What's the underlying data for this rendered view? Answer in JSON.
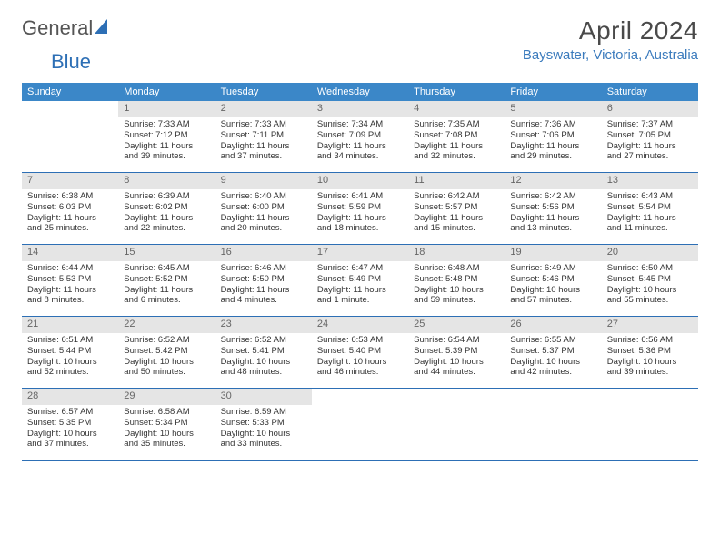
{
  "logo": {
    "text1": "General",
    "text2": "Blue"
  },
  "title": {
    "month": "April 2024",
    "location": "Bayswater, Victoria, Australia"
  },
  "colors": {
    "header_bg": "#3b87c8",
    "header_text": "#ffffff",
    "week_border": "#2d6fb5",
    "daynum_bg": "#e5e5e5",
    "daynum_text": "#666666",
    "body_text": "#333333",
    "location_text": "#3b7bbd",
    "month_text": "#4a4a4a",
    "logo_blue": "#2d6fb5"
  },
  "daysOfWeek": [
    "Sunday",
    "Monday",
    "Tuesday",
    "Wednesday",
    "Thursday",
    "Friday",
    "Saturday"
  ],
  "weeks": [
    [
      {
        "n": "",
        "sr": "",
        "ss": "",
        "dl": ""
      },
      {
        "n": "1",
        "sr": "Sunrise: 7:33 AM",
        "ss": "Sunset: 7:12 PM",
        "dl": "Daylight: 11 hours and 39 minutes."
      },
      {
        "n": "2",
        "sr": "Sunrise: 7:33 AM",
        "ss": "Sunset: 7:11 PM",
        "dl": "Daylight: 11 hours and 37 minutes."
      },
      {
        "n": "3",
        "sr": "Sunrise: 7:34 AM",
        "ss": "Sunset: 7:09 PM",
        "dl": "Daylight: 11 hours and 34 minutes."
      },
      {
        "n": "4",
        "sr": "Sunrise: 7:35 AM",
        "ss": "Sunset: 7:08 PM",
        "dl": "Daylight: 11 hours and 32 minutes."
      },
      {
        "n": "5",
        "sr": "Sunrise: 7:36 AM",
        "ss": "Sunset: 7:06 PM",
        "dl": "Daylight: 11 hours and 29 minutes."
      },
      {
        "n": "6",
        "sr": "Sunrise: 7:37 AM",
        "ss": "Sunset: 7:05 PM",
        "dl": "Daylight: 11 hours and 27 minutes."
      }
    ],
    [
      {
        "n": "7",
        "sr": "Sunrise: 6:38 AM",
        "ss": "Sunset: 6:03 PM",
        "dl": "Daylight: 11 hours and 25 minutes."
      },
      {
        "n": "8",
        "sr": "Sunrise: 6:39 AM",
        "ss": "Sunset: 6:02 PM",
        "dl": "Daylight: 11 hours and 22 minutes."
      },
      {
        "n": "9",
        "sr": "Sunrise: 6:40 AM",
        "ss": "Sunset: 6:00 PM",
        "dl": "Daylight: 11 hours and 20 minutes."
      },
      {
        "n": "10",
        "sr": "Sunrise: 6:41 AM",
        "ss": "Sunset: 5:59 PM",
        "dl": "Daylight: 11 hours and 18 minutes."
      },
      {
        "n": "11",
        "sr": "Sunrise: 6:42 AM",
        "ss": "Sunset: 5:57 PM",
        "dl": "Daylight: 11 hours and 15 minutes."
      },
      {
        "n": "12",
        "sr": "Sunrise: 6:42 AM",
        "ss": "Sunset: 5:56 PM",
        "dl": "Daylight: 11 hours and 13 minutes."
      },
      {
        "n": "13",
        "sr": "Sunrise: 6:43 AM",
        "ss": "Sunset: 5:54 PM",
        "dl": "Daylight: 11 hours and 11 minutes."
      }
    ],
    [
      {
        "n": "14",
        "sr": "Sunrise: 6:44 AM",
        "ss": "Sunset: 5:53 PM",
        "dl": "Daylight: 11 hours and 8 minutes."
      },
      {
        "n": "15",
        "sr": "Sunrise: 6:45 AM",
        "ss": "Sunset: 5:52 PM",
        "dl": "Daylight: 11 hours and 6 minutes."
      },
      {
        "n": "16",
        "sr": "Sunrise: 6:46 AM",
        "ss": "Sunset: 5:50 PM",
        "dl": "Daylight: 11 hours and 4 minutes."
      },
      {
        "n": "17",
        "sr": "Sunrise: 6:47 AM",
        "ss": "Sunset: 5:49 PM",
        "dl": "Daylight: 11 hours and 1 minute."
      },
      {
        "n": "18",
        "sr": "Sunrise: 6:48 AM",
        "ss": "Sunset: 5:48 PM",
        "dl": "Daylight: 10 hours and 59 minutes."
      },
      {
        "n": "19",
        "sr": "Sunrise: 6:49 AM",
        "ss": "Sunset: 5:46 PM",
        "dl": "Daylight: 10 hours and 57 minutes."
      },
      {
        "n": "20",
        "sr": "Sunrise: 6:50 AM",
        "ss": "Sunset: 5:45 PM",
        "dl": "Daylight: 10 hours and 55 minutes."
      }
    ],
    [
      {
        "n": "21",
        "sr": "Sunrise: 6:51 AM",
        "ss": "Sunset: 5:44 PM",
        "dl": "Daylight: 10 hours and 52 minutes."
      },
      {
        "n": "22",
        "sr": "Sunrise: 6:52 AM",
        "ss": "Sunset: 5:42 PM",
        "dl": "Daylight: 10 hours and 50 minutes."
      },
      {
        "n": "23",
        "sr": "Sunrise: 6:52 AM",
        "ss": "Sunset: 5:41 PM",
        "dl": "Daylight: 10 hours and 48 minutes."
      },
      {
        "n": "24",
        "sr": "Sunrise: 6:53 AM",
        "ss": "Sunset: 5:40 PM",
        "dl": "Daylight: 10 hours and 46 minutes."
      },
      {
        "n": "25",
        "sr": "Sunrise: 6:54 AM",
        "ss": "Sunset: 5:39 PM",
        "dl": "Daylight: 10 hours and 44 minutes."
      },
      {
        "n": "26",
        "sr": "Sunrise: 6:55 AM",
        "ss": "Sunset: 5:37 PM",
        "dl": "Daylight: 10 hours and 42 minutes."
      },
      {
        "n": "27",
        "sr": "Sunrise: 6:56 AM",
        "ss": "Sunset: 5:36 PM",
        "dl": "Daylight: 10 hours and 39 minutes."
      }
    ],
    [
      {
        "n": "28",
        "sr": "Sunrise: 6:57 AM",
        "ss": "Sunset: 5:35 PM",
        "dl": "Daylight: 10 hours and 37 minutes."
      },
      {
        "n": "29",
        "sr": "Sunrise: 6:58 AM",
        "ss": "Sunset: 5:34 PM",
        "dl": "Daylight: 10 hours and 35 minutes."
      },
      {
        "n": "30",
        "sr": "Sunrise: 6:59 AM",
        "ss": "Sunset: 5:33 PM",
        "dl": "Daylight: 10 hours and 33 minutes."
      },
      {
        "n": "",
        "sr": "",
        "ss": "",
        "dl": ""
      },
      {
        "n": "",
        "sr": "",
        "ss": "",
        "dl": ""
      },
      {
        "n": "",
        "sr": "",
        "ss": "",
        "dl": ""
      },
      {
        "n": "",
        "sr": "",
        "ss": "",
        "dl": ""
      }
    ]
  ]
}
